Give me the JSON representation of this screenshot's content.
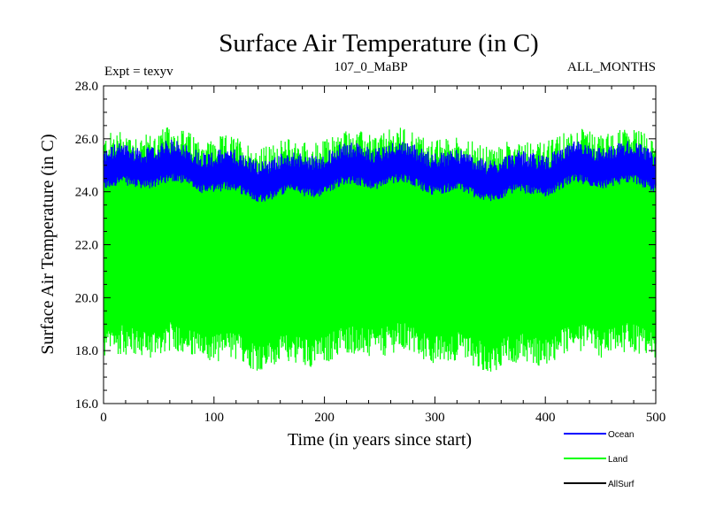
{
  "chart_data": {
    "type": "line",
    "title": "Surface Air Temperature (in C)",
    "subtitle_left": "Expt = texyv",
    "subtitle_center": "107_0_MaBP",
    "subtitle_right": "ALL_MONTHS",
    "xlabel": "Time (in years since start)",
    "ylabel": "Surface Air Temperature (in C)",
    "xlim": [
      0,
      500
    ],
    "ylim": [
      16.0,
      28.0
    ],
    "xticks": [
      0,
      100,
      200,
      300,
      400,
      500
    ],
    "yticks": [
      "16.0",
      "18.0",
      "20.0",
      "22.0",
      "24.0",
      "26.0",
      "28.0"
    ],
    "grid": false,
    "legend_position": "bottom-right",
    "series": [
      {
        "name": "Ocean",
        "color": "#0000ff",
        "mean": 24.7,
        "range": [
          23.9,
          25.8
        ]
      },
      {
        "name": "Land",
        "color": "#00ff00",
        "mean": 21.3,
        "range": [
          17.0,
          26.6
        ]
      },
      {
        "name": "AllSurf",
        "color": "#000000"
      }
    ]
  }
}
